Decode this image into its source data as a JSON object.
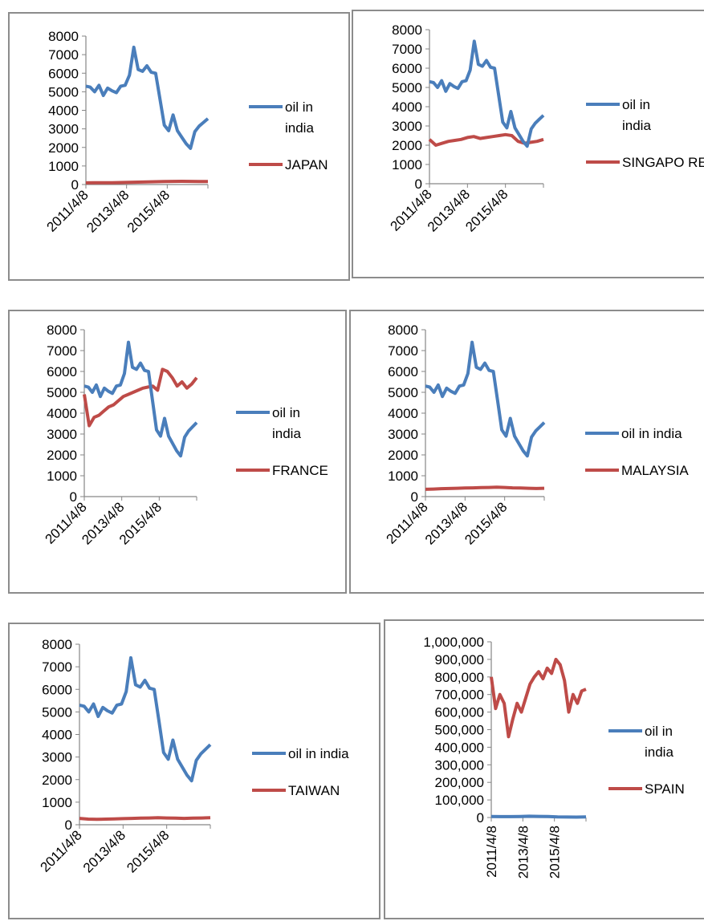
{
  "colors": {
    "oil": "#4a7ebb",
    "other": "#be4b48",
    "axis": "#868686"
  },
  "chart_data": [
    {
      "type": "line",
      "x_tick_labels": [
        "2011/4/8",
        "2013/4/8",
        "2015/4/8"
      ],
      "ylim": [
        0,
        8000
      ],
      "y_tick_labels": [
        "0",
        "1000",
        "2000",
        "3000",
        "4000",
        "5000",
        "6000",
        "7000",
        "8000"
      ],
      "legend_position": "right",
      "series": [
        {
          "name": "oil in india",
          "values": [
            5300,
            5250,
            5000,
            5350,
            4800,
            5200,
            5050,
            4950,
            5300,
            5350,
            5900,
            7400,
            6200,
            6100,
            6400,
            6050,
            6000,
            4600,
            3200,
            2900,
            3750,
            2900,
            2550,
            2200,
            1950,
            2850,
            3150,
            3350,
            3550
          ]
        },
        {
          "name": "JAPAN",
          "values": [
            90,
            95,
            100,
            100,
            110,
            120,
            130,
            140,
            150,
            160,
            170,
            175,
            170,
            165,
            160
          ]
        }
      ]
    },
    {
      "type": "line",
      "x_tick_labels": [
        "2011/4/8",
        "2013/4/8",
        "2015/4/8"
      ],
      "ylim": [
        0,
        8000
      ],
      "y_tick_labels": [
        "0",
        "1000",
        "2000",
        "3000",
        "4000",
        "5000",
        "6000",
        "7000",
        "8000"
      ],
      "legend_position": "right",
      "series": [
        {
          "name": "oil in india",
          "values": [
            5300,
            5250,
            5000,
            5350,
            4800,
            5200,
            5050,
            4950,
            5300,
            5350,
            5900,
            7400,
            6200,
            6100,
            6400,
            6050,
            6000,
            4600,
            3200,
            2900,
            3750,
            2900,
            2550,
            2200,
            1950,
            2850,
            3150,
            3350,
            3550
          ]
        },
        {
          "name": "SINGAPO RE",
          "values": [
            2300,
            2000,
            2100,
            2200,
            2250,
            2300,
            2400,
            2450,
            2350,
            2400,
            2450,
            2500,
            2550,
            2500,
            2200,
            2100,
            2150,
            2200,
            2300
          ]
        }
      ]
    },
    {
      "type": "line",
      "x_tick_labels": [
        "2011/4/8",
        "2013/4/8",
        "2015/4/8"
      ],
      "ylim": [
        0,
        8000
      ],
      "y_tick_labels": [
        "0",
        "1000",
        "2000",
        "3000",
        "4000",
        "5000",
        "6000",
        "7000",
        "8000"
      ],
      "legend_position": "right",
      "series": [
        {
          "name": "oil in india",
          "values": [
            5300,
            5250,
            5000,
            5350,
            4800,
            5200,
            5050,
            4950,
            5300,
            5350,
            5900,
            7400,
            6200,
            6100,
            6400,
            6050,
            6000,
            4600,
            3200,
            2900,
            3750,
            2900,
            2550,
            2200,
            1950,
            2850,
            3150,
            3350,
            3550
          ]
        },
        {
          "name": "FRANCE",
          "values": [
            4900,
            3400,
            3800,
            3900,
            4100,
            4300,
            4400,
            4600,
            4800,
            4900,
            5000,
            5100,
            5200,
            5250,
            5300,
            5100,
            6100,
            6000,
            5700,
            5300,
            5500,
            5200,
            5400,
            5700
          ]
        }
      ]
    },
    {
      "type": "line",
      "x_tick_labels": [
        "2011/4/8",
        "2013/4/8",
        "2015/4/8"
      ],
      "ylim": [
        0,
        8000
      ],
      "y_tick_labels": [
        "0",
        "1000",
        "2000",
        "3000",
        "4000",
        "5000",
        "6000",
        "7000",
        "8000"
      ],
      "legend_position": "right",
      "series": [
        {
          "name": "oil in india",
          "values": [
            5300,
            5250,
            5000,
            5350,
            4800,
            5200,
            5050,
            4950,
            5300,
            5350,
            5900,
            7400,
            6200,
            6100,
            6400,
            6050,
            6000,
            4600,
            3200,
            2900,
            3750,
            2900,
            2550,
            2200,
            1950,
            2850,
            3150,
            3350,
            3550
          ]
        },
        {
          "name": "MALAYSIA",
          "values": [
            350,
            360,
            380,
            390,
            400,
            410,
            420,
            430,
            440,
            450,
            440,
            420,
            410,
            400,
            390,
            400
          ]
        }
      ]
    },
    {
      "type": "line",
      "x_tick_labels": [
        "2011/4/8",
        "2013/4/8",
        "2015/4/8"
      ],
      "ylim": [
        0,
        8000
      ],
      "y_tick_labels": [
        "0",
        "1000",
        "2000",
        "3000",
        "4000",
        "5000",
        "6000",
        "7000",
        "8000"
      ],
      "legend_position": "right",
      "series": [
        {
          "name": "oil in india",
          "values": [
            5300,
            5250,
            5000,
            5350,
            4800,
            5200,
            5050,
            4950,
            5300,
            5350,
            5900,
            7400,
            6200,
            6100,
            6400,
            6050,
            6000,
            4600,
            3200,
            2900,
            3750,
            2900,
            2550,
            2200,
            1950,
            2850,
            3150,
            3350,
            3550
          ]
        },
        {
          "name": "TAIWAN",
          "values": [
            280,
            250,
            240,
            250,
            260,
            270,
            280,
            290,
            300,
            310,
            300,
            290,
            280,
            290,
            300,
            310
          ]
        }
      ]
    },
    {
      "type": "line",
      "x_tick_labels": [
        "2011/4/8",
        "2013/4/8",
        "2015/4/8"
      ],
      "ylim": [
        0,
        1000000
      ],
      "y_tick_labels": [
        "0",
        "100,000",
        "200,000",
        "300,000",
        "400,000",
        "500,000",
        "600,000",
        "700,000",
        "800,000",
        "900,000",
        "1,000,000"
      ],
      "legend_position": "right",
      "series": [
        {
          "name": "oil in india",
          "values": [
            5300,
            5000,
            5200,
            5900,
            7400,
            6200,
            6000,
            3200,
            2900,
            2200,
            3500
          ]
        },
        {
          "name": "SPAIN",
          "values": [
            800000,
            620000,
            700000,
            650000,
            460000,
            560000,
            650000,
            600000,
            680000,
            760000,
            800000,
            830000,
            790000,
            850000,
            820000,
            900000,
            870000,
            780000,
            600000,
            700000,
            650000,
            720000,
            730000
          ]
        }
      ]
    }
  ]
}
